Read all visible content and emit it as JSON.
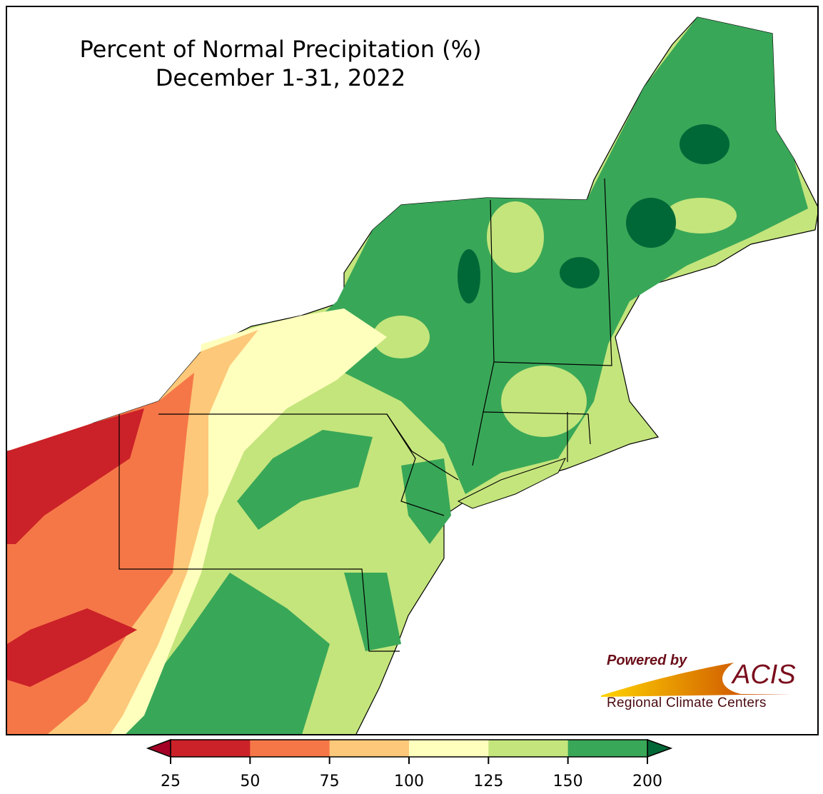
{
  "title": {
    "line1": "Percent of Normal Precipitation (%)",
    "line2": "December 1-31, 2022"
  },
  "colorbar": {
    "ticks": [
      "25",
      "50",
      "75",
      "100",
      "125",
      "150",
      "200"
    ],
    "under_color": "#a50026",
    "over_color": "#006837",
    "bins": [
      {
        "range": "25-50",
        "color": "#cb2128"
      },
      {
        "range": "50-75",
        "color": "#f57748"
      },
      {
        "range": "75-100",
        "color": "#fdc879"
      },
      {
        "range": "100-125",
        "color": "#fefebd"
      },
      {
        "range": "125-150",
        "color": "#c4e57c"
      },
      {
        "range": "150-200",
        "color": "#39a758"
      }
    ]
  },
  "logo": {
    "powered_by": "Powered by",
    "name": "ACIS",
    "subtitle": "Regional Climate Centers"
  }
}
